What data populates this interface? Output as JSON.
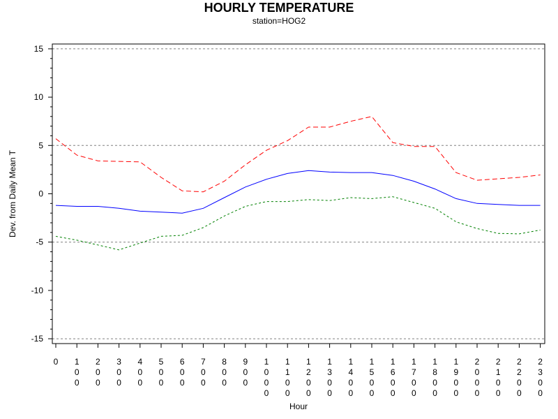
{
  "chart_data": {
    "type": "line",
    "title": "HOURLY TEMPERATURE",
    "subtitle": "station=HOG2",
    "xlabel": "Hour",
    "ylabel": "Dev. from Daily Mean T",
    "ylim": [
      -15.5,
      15.5
    ],
    "yticks": [
      15,
      10,
      5,
      0,
      -5,
      -10,
      -15
    ],
    "ytick_labels": [
      "15",
      "10",
      "5",
      "0",
      "-5",
      "-10",
      "-15"
    ],
    "reference_lines": [
      15,
      5,
      -5,
      -15
    ],
    "grid": false,
    "categories": [
      "0",
      "100",
      "200",
      "300",
      "400",
      "500",
      "600",
      "700",
      "800",
      "900",
      "1000",
      "1100",
      "1200",
      "1300",
      "1400",
      "1500",
      "1600",
      "1700",
      "1800",
      "1900",
      "2000",
      "2100",
      "2200",
      "2300"
    ],
    "series": [
      {
        "color": "#ff0000",
        "style": "dashed",
        "values": [
          5.7,
          4.0,
          3.4,
          3.35,
          3.3,
          1.7,
          0.3,
          0.2,
          1.3,
          3.0,
          4.5,
          5.5,
          6.9,
          6.9,
          7.5,
          8.0,
          5.3,
          4.9,
          4.9,
          2.2,
          1.4,
          1.55,
          1.7,
          1.95
        ]
      },
      {
        "color": "#0000ff",
        "style": "solid",
        "values": [
          -1.2,
          -1.3,
          -1.3,
          -1.5,
          -1.8,
          -1.9,
          -2.0,
          -1.5,
          -0.4,
          0.7,
          1.5,
          2.1,
          2.4,
          2.25,
          2.2,
          2.2,
          1.9,
          1.3,
          0.5,
          -0.5,
          -1.0,
          -1.1,
          -1.2,
          -1.2
        ]
      },
      {
        "color": "#008000",
        "style": "dotted",
        "values": [
          -4.4,
          -4.8,
          -5.3,
          -5.8,
          -5.1,
          -4.4,
          -4.3,
          -3.5,
          -2.3,
          -1.3,
          -0.8,
          -0.8,
          -0.6,
          -0.7,
          -0.4,
          -0.5,
          -0.3,
          -0.9,
          -1.5,
          -2.9,
          -3.6,
          -4.1,
          -4.15,
          -3.75
        ]
      }
    ]
  }
}
